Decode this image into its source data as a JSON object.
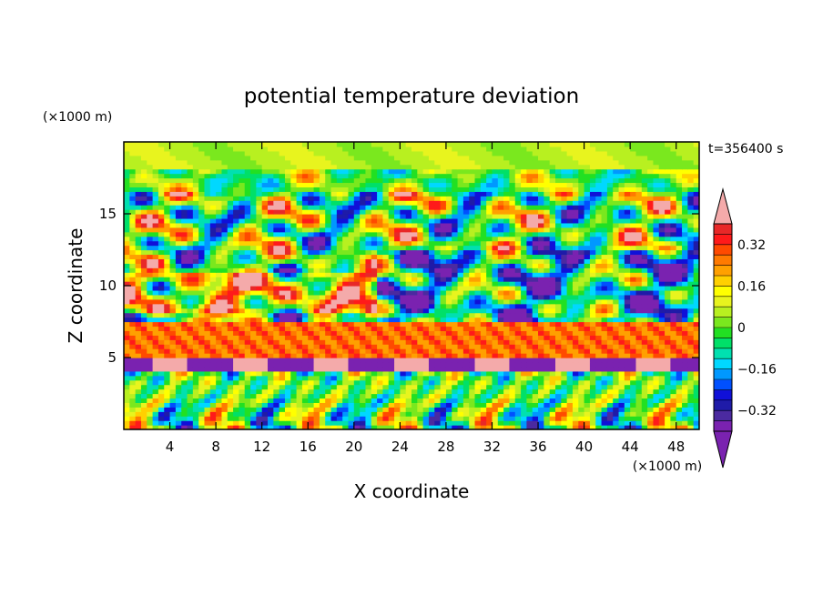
{
  "chart_data": {
    "type": "heatmap",
    "title": "potential temperature deviation",
    "xlabel": "X coordinate",
    "ylabel": "Z coordinate",
    "x_unit": "(×1000 m)",
    "z_unit": "(×1000 m)",
    "time_label": "t=356400 s",
    "xlim": [
      0,
      50
    ],
    "ylim": [
      0,
      20
    ],
    "x_ticks": [
      "4",
      "8",
      "12",
      "16",
      "20",
      "24",
      "28",
      "32",
      "36",
      "40",
      "44",
      "48"
    ],
    "x_tick_values": [
      4,
      8,
      12,
      16,
      20,
      24,
      28,
      32,
      36,
      40,
      44,
      48
    ],
    "y_ticks": [
      "5",
      "10",
      "15"
    ],
    "y_tick_values": [
      5,
      10,
      15
    ],
    "colorbar": {
      "levels": [
        -0.4,
        -0.36,
        -0.32,
        -0.28,
        -0.24,
        -0.2,
        -0.16,
        -0.12,
        -0.08,
        -0.04,
        0,
        0.04,
        0.08,
        0.12,
        0.16,
        0.2,
        0.24,
        0.28,
        0.32,
        0.36,
        0.4
      ],
      "labels": [
        "0.32",
        "0.16",
        "0",
        "−0.16",
        "−0.32"
      ],
      "label_values": [
        0.32,
        0.16,
        0,
        -0.16,
        -0.32
      ],
      "colors": [
        "#7a22b0",
        "#4b2aa0",
        "#1f1ba8",
        "#1010d8",
        "#0050ff",
        "#0098ff",
        "#00d8ff",
        "#00e0b0",
        "#00e068",
        "#22e022",
        "#7ae81e",
        "#b8f020",
        "#e8f41e",
        "#ffff00",
        "#ffd000",
        "#ffa000",
        "#ff7a00",
        "#ff4a00",
        "#ff1a1a",
        "#e82828"
      ],
      "over_color": "#f4aaaa",
      "under_color": "#7a22b0"
    },
    "bands": [
      {
        "z_range": [
          0,
          4
        ],
        "description": "near-surface alternating warm/cold columns"
      },
      {
        "z_range": [
          4,
          5
        ],
        "value": -0.4
      },
      {
        "z_range": [
          5,
          7.5
        ],
        "value": 0.3
      },
      {
        "z_range": [
          7.5,
          18
        ],
        "description": "turbulent mixed positive/negative anomalies"
      },
      {
        "z_range": [
          18,
          20
        ],
        "value": 0.05
      }
    ]
  }
}
